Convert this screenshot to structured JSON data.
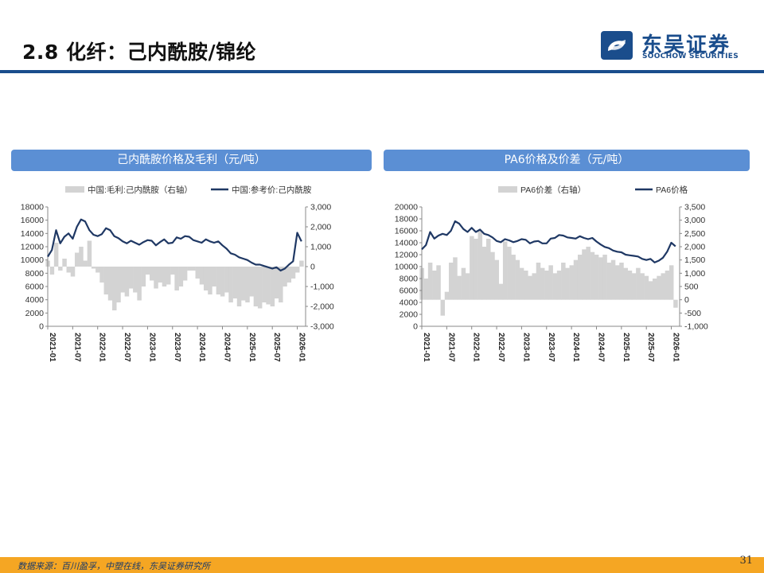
{
  "slide": {
    "title": "2.8 化纤：己内酰胺/锦纶",
    "source": "数据来源：百川盈孚，中塑在线，东吴证券研究所",
    "page_number": "31"
  },
  "logo": {
    "name_cn": "东吴证券",
    "name_en": "SOOCHOW SECURITIES",
    "colors": {
      "primary": "#1a4d8c"
    }
  },
  "colors": {
    "line": "#1f3864",
    "area": "#d3d3d3",
    "header": "#5b8fd4",
    "title_rule": "#1a4d8c",
    "footer": "#f5a623"
  },
  "chart_data": [
    {
      "type": "line+area",
      "title": "己内酰胺价格及毛利（元/吨）",
      "x_ticks": [
        "2021-01",
        "2021-07",
        "2022-01",
        "2022-07",
        "2023-01",
        "2023-07",
        "2024-01",
        "2024-07",
        "2025-01",
        "2025-07",
        "2026-01"
      ],
      "x_range": [
        "2021-01",
        "2026-03"
      ],
      "left_axis": {
        "min": 0,
        "max": 18000,
        "ticks": [
          "0",
          "2000",
          "4000",
          "6000",
          "8000",
          "10000",
          "12000",
          "14000",
          "16000",
          "18000"
        ]
      },
      "right_axis": {
        "min": -3000,
        "max": 3000,
        "ticks": [
          "-3,000",
          "-2,000",
          "-1,000",
          "0",
          "1,000",
          "2,000",
          "3,000"
        ]
      },
      "legend": {
        "placement": "top"
      },
      "series": [
        {
          "name": "中国:毛利:己内酰胺（右轴）",
          "kind": "area",
          "axis": "right",
          "x": [
            "2021-01",
            "2021-02",
            "2021-03",
            "2021-04",
            "2021-05",
            "2021-06",
            "2021-07",
            "2021-08",
            "2021-09",
            "2021-10",
            "2021-11",
            "2021-12",
            "2022-01",
            "2022-02",
            "2022-03",
            "2022-04",
            "2022-05",
            "2022-06",
            "2022-07",
            "2022-08",
            "2022-09",
            "2022-10",
            "2022-11",
            "2022-12",
            "2023-01",
            "2023-02",
            "2023-03",
            "2023-04",
            "2023-05",
            "2023-06",
            "2023-07",
            "2023-08",
            "2023-09",
            "2023-10",
            "2023-11",
            "2023-12",
            "2024-01",
            "2024-02",
            "2024-03",
            "2024-04",
            "2024-05",
            "2024-06",
            "2024-07",
            "2024-08",
            "2024-09",
            "2024-10",
            "2024-11",
            "2024-12",
            "2025-01",
            "2025-02",
            "2025-03",
            "2025-04",
            "2025-05",
            "2025-06",
            "2025-07",
            "2025-08",
            "2025-09",
            "2025-10",
            "2025-11",
            "2025-12",
            "2026-01",
            "2026-02"
          ],
          "values": [
            300,
            -400,
            1200,
            -200,
            400,
            -300,
            -500,
            700,
            1000,
            300,
            1300,
            -100,
            -300,
            -800,
            -1400,
            -1700,
            -2200,
            -1800,
            -1300,
            -1500,
            -1100,
            -1300,
            -1700,
            -1000,
            -400,
            -700,
            -1100,
            -800,
            -1000,
            -900,
            -400,
            -1200,
            -1000,
            -700,
            -200,
            -200,
            -600,
            -900,
            -1200,
            -1400,
            -1000,
            -1400,
            -1500,
            -1300,
            -1800,
            -1600,
            -2000,
            -1700,
            -1800,
            -1500,
            -2000,
            -2100,
            -1800,
            -1900,
            -2000,
            -1600,
            -1800,
            -1000,
            -800,
            -600,
            -300,
            300
          ]
        },
        {
          "name": "中国:参考价:己内酰胺",
          "kind": "line",
          "axis": "left",
          "x": [
            "2021-01",
            "2021-02",
            "2021-03",
            "2021-04",
            "2021-05",
            "2021-06",
            "2021-07",
            "2021-08",
            "2021-09",
            "2021-10",
            "2021-11",
            "2021-12",
            "2022-01",
            "2022-02",
            "2022-03",
            "2022-04",
            "2022-05",
            "2022-06",
            "2022-07",
            "2022-08",
            "2022-09",
            "2022-10",
            "2022-11",
            "2022-12",
            "2023-01",
            "2023-02",
            "2023-03",
            "2023-04",
            "2023-05",
            "2023-06",
            "2023-07",
            "2023-08",
            "2023-09",
            "2023-10",
            "2023-11",
            "2023-12",
            "2024-01",
            "2024-02",
            "2024-03",
            "2024-04",
            "2024-05",
            "2024-06",
            "2024-07",
            "2024-08",
            "2024-09",
            "2024-10",
            "2024-11",
            "2024-12",
            "2025-01",
            "2025-02",
            "2025-03",
            "2025-04",
            "2025-05",
            "2025-06",
            "2025-07",
            "2025-08",
            "2025-09",
            "2025-10",
            "2025-11",
            "2025-12",
            "2026-01",
            "2026-02"
          ],
          "values": [
            10500,
            11500,
            14500,
            12500,
            13500,
            14000,
            13200,
            15000,
            16100,
            15800,
            14500,
            13800,
            13600,
            13900,
            14800,
            14500,
            13600,
            13300,
            12800,
            12500,
            12900,
            12600,
            12300,
            12700,
            13000,
            12900,
            12200,
            12700,
            13100,
            12500,
            12600,
            13400,
            13200,
            13600,
            13500,
            13000,
            12800,
            12600,
            13100,
            12800,
            12600,
            12800,
            12200,
            11700,
            11000,
            10800,
            10400,
            10200,
            10000,
            9600,
            9300,
            9300,
            9100,
            8900,
            8700,
            8900,
            8400,
            8700,
            9300,
            9800,
            14100,
            12800
          ]
        }
      ]
    },
    {
      "type": "line+area",
      "title": "PA6价格及价差（元/吨）",
      "x_ticks": [
        "2021-01",
        "2021-07",
        "2022-01",
        "2022-07",
        "2023-01",
        "2023-07",
        "2024-01",
        "2024-07",
        "2025-01",
        "2025-07",
        "2026-01"
      ],
      "x_range": [
        "2021-01",
        "2026-03"
      ],
      "left_axis": {
        "min": 0,
        "max": 20000,
        "ticks": [
          "0",
          "2000",
          "4000",
          "6000",
          "8000",
          "10000",
          "12000",
          "14000",
          "16000",
          "18000",
          "20000"
        ]
      },
      "right_axis": {
        "min": -1000,
        "max": 3500,
        "ticks": [
          "-1,000",
          "-500",
          "0",
          "500",
          "1,000",
          "1,500",
          "2,000",
          "2,500",
          "3,000",
          "3,500"
        ]
      },
      "legend": {
        "placement": "top"
      },
      "series": [
        {
          "name": "PA6价差（右轴）",
          "kind": "area",
          "axis": "right",
          "x": [
            "2021-01",
            "2021-02",
            "2021-03",
            "2021-04",
            "2021-05",
            "2021-06",
            "2021-07",
            "2021-08",
            "2021-09",
            "2021-10",
            "2021-11",
            "2021-12",
            "2022-01",
            "2022-02",
            "2022-03",
            "2022-04",
            "2022-05",
            "2022-06",
            "2022-07",
            "2022-08",
            "2022-09",
            "2022-10",
            "2022-11",
            "2022-12",
            "2023-01",
            "2023-02",
            "2023-03",
            "2023-04",
            "2023-05",
            "2023-06",
            "2023-07",
            "2023-08",
            "2023-09",
            "2023-10",
            "2023-11",
            "2023-12",
            "2024-01",
            "2024-02",
            "2024-03",
            "2024-04",
            "2024-05",
            "2024-06",
            "2024-07",
            "2024-08",
            "2024-09",
            "2024-10",
            "2024-11",
            "2024-12",
            "2025-01",
            "2025-02",
            "2025-03",
            "2025-04",
            "2025-05",
            "2025-06",
            "2025-07",
            "2025-08",
            "2025-09",
            "2025-10",
            "2025-11",
            "2025-12",
            "2026-01",
            "2026-02"
          ],
          "values": [
            1200,
            800,
            1400,
            1100,
            1300,
            -600,
            300,
            1400,
            1600,
            900,
            1200,
            1000,
            2400,
            2300,
            2600,
            2000,
            2300,
            1800,
            1500,
            600,
            2200,
            2000,
            1700,
            1500,
            1200,
            1100,
            900,
            1000,
            1400,
            1200,
            1100,
            1300,
            1000,
            1100,
            1400,
            1200,
            1300,
            1500,
            1700,
            1900,
            2000,
            1800,
            1700,
            1600,
            1700,
            1400,
            1500,
            1300,
            1400,
            1200,
            1100,
            1000,
            1200,
            1000,
            900,
            700,
            800,
            900,
            1000,
            1100,
            1300,
            -300
          ]
        },
        {
          "name": "PA6价格",
          "kind": "line",
          "axis": "left",
          "x": [
            "2021-01",
            "2021-02",
            "2021-03",
            "2021-04",
            "2021-05",
            "2021-06",
            "2021-07",
            "2021-08",
            "2021-09",
            "2021-10",
            "2021-11",
            "2021-12",
            "2022-01",
            "2022-02",
            "2022-03",
            "2022-04",
            "2022-05",
            "2022-06",
            "2022-07",
            "2022-08",
            "2022-09",
            "2022-10",
            "2022-11",
            "2022-12",
            "2023-01",
            "2023-02",
            "2023-03",
            "2023-04",
            "2023-05",
            "2023-06",
            "2023-07",
            "2023-08",
            "2023-09",
            "2023-10",
            "2023-11",
            "2023-12",
            "2024-01",
            "2024-02",
            "2024-03",
            "2024-04",
            "2024-05",
            "2024-06",
            "2024-07",
            "2024-08",
            "2024-09",
            "2024-10",
            "2024-11",
            "2024-12",
            "2025-01",
            "2025-02",
            "2025-03",
            "2025-04",
            "2025-05",
            "2025-06",
            "2025-07",
            "2025-08",
            "2025-09",
            "2025-10",
            "2025-11",
            "2025-12",
            "2026-01",
            "2026-02"
          ],
          "values": [
            12900,
            13600,
            15800,
            14700,
            15200,
            15500,
            15300,
            16000,
            17600,
            17200,
            16300,
            15800,
            16500,
            15800,
            16200,
            15500,
            15300,
            14900,
            14300,
            14100,
            14600,
            14400,
            14100,
            14300,
            14600,
            14500,
            13900,
            14200,
            14300,
            13900,
            13900,
            14700,
            14800,
            15300,
            15200,
            14900,
            14800,
            14700,
            15100,
            14800,
            14600,
            14800,
            14200,
            13700,
            13300,
            13100,
            12700,
            12500,
            12400,
            12000,
            11900,
            11800,
            11700,
            11300,
            11100,
            11300,
            10700,
            11000,
            11500,
            12500,
            14000,
            13400
          ]
        }
      ]
    }
  ]
}
